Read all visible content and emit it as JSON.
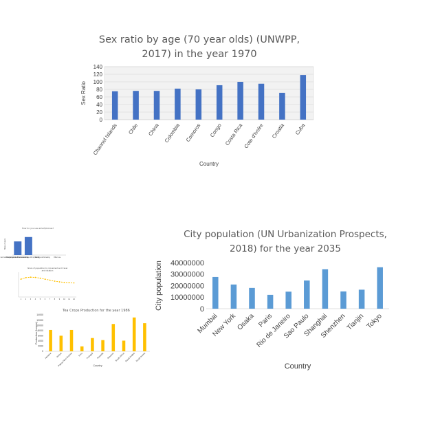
{
  "chart_data": [
    {
      "id": "sexratio",
      "type": "bar",
      "title_lines": [
        "Sex ratio by age (70 year olds) (UNWPP,",
        "2017) in the year 1970"
      ],
      "xlabel": "Country",
      "ylabel": "Sex Ratio",
      "ylim": [
        0,
        140
      ],
      "yticks": [
        "0",
        "20",
        "40",
        "60",
        "80",
        "100",
        "120",
        "140"
      ],
      "categories": [
        "Channel Islands",
        "Chile",
        "China",
        "Colombia",
        "Comoros",
        "Congo",
        "Costa Rica",
        "Cote d'Ivoire",
        "Croatia",
        "Cuba"
      ],
      "values": [
        75,
        76,
        76,
        82,
        80,
        91,
        100,
        95,
        71,
        118
      ],
      "color": "#4472c4",
      "grid": true
    },
    {
      "id": "citypop",
      "type": "bar",
      "title_lines": [
        "City population (UN Urbanization Prospects,",
        "2018) for the year 2035"
      ],
      "xlabel": "Country",
      "ylabel": "City population",
      "ylim": [
        0,
        40000000
      ],
      "yticks": [
        "0",
        "10000000",
        "20000000",
        "30000000",
        "40000000"
      ],
      "categories": [
        "Mumbai",
        "New York",
        "Osaka",
        "Paris",
        "Rio de Janeiro",
        "Sao Paulo",
        "Shanghai",
        "Shenzhen",
        "Tianjin",
        "Tokyo"
      ],
      "values": [
        27500000,
        21000000,
        18000000,
        12000000,
        14800000,
        24500000,
        34300000,
        15000000,
        16500000,
        36000000
      ],
      "color": "#5b9bd5",
      "grid": false
    },
    {
      "id": "teacrops",
      "type": "bar",
      "title_lines": [
        "Tea Crops  Production for the year 1986"
      ],
      "xlabel": "Country",
      "ylabel": "Production (tonnes)",
      "ylim": [
        0,
        14000
      ],
      "yticks": [
        "0",
        "2000",
        "4000",
        "6000",
        "8000",
        "10000",
        "12000",
        "14000"
      ],
      "categories": [
        "Jamaica",
        "Kenya",
        "Papua New Guinea",
        "Peru",
        "Portugal",
        "Rwanda",
        "Reunion",
        "South Africa",
        "Saudi Arabia",
        "South Korea"
      ],
      "values": [
        8200,
        6000,
        8200,
        1900,
        5100,
        4300,
        10500,
        4100,
        13000,
        10800
      ],
      "color": "#ffc000",
      "grid": false
    },
    {
      "id": "survey",
      "type": "bar",
      "title_lines": [
        "How do you use smartphones?"
      ],
      "xlabel": "",
      "ylabel": "Share of users",
      "ylim": [
        0,
        100
      ],
      "yticks": [],
      "categories": [
        "Music and video entertainment",
        "Shopping and social networking",
        "To communicate with my family",
        "Gaming and browsing",
        "Other use"
      ],
      "values": [
        62,
        82,
        0,
        0,
        0
      ],
      "color": "#4472c4",
      "grid": false
    },
    {
      "id": "trend",
      "type": "line",
      "title_lines": [
        "Share of population by movement and travel",
        "and vacation"
      ],
      "xlabel": "",
      "ylabel": "",
      "ylim": [
        0,
        10
      ],
      "yticks": [],
      "categories": [
        "1",
        "2",
        "3",
        "4",
        "5",
        "6",
        "7",
        "8",
        "9",
        "10",
        "11",
        "12"
      ],
      "values": [
        7.2,
        7.8,
        8.0,
        7.9,
        7.6,
        7.2,
        6.8,
        6.4,
        6.1,
        5.9,
        5.8,
        5.7
      ],
      "color": "#ffc000",
      "grid": false
    }
  ]
}
